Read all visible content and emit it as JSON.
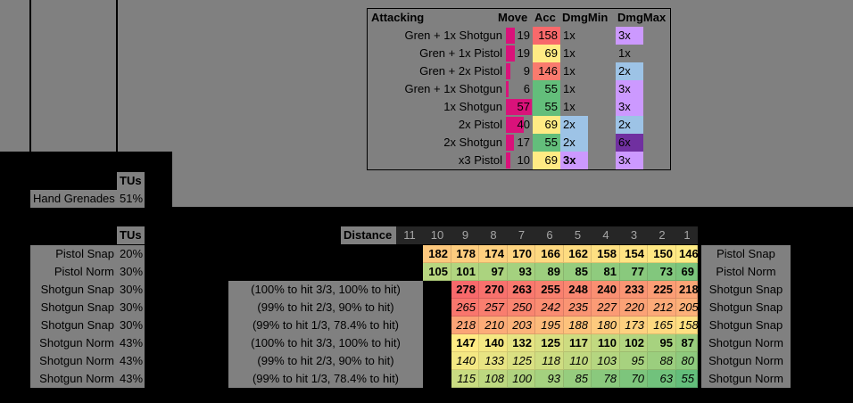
{
  "attack_table": {
    "headers": [
      "Attacking",
      "Move",
      "Acc",
      "DmgMin",
      "DmgMax"
    ],
    "rows": [
      {
        "name": "Gren + 1x Shotgun",
        "move": 19,
        "acc": 158,
        "dmg_min": "1x",
        "dmg_max": "3x",
        "dmg_min_fill": null,
        "dmg_max_fill": "#cc99ff"
      },
      {
        "name": "Gren + 1x Pistol",
        "move": 19,
        "acc": 69,
        "dmg_min": "1x",
        "dmg_max": "1x",
        "dmg_min_fill": null,
        "dmg_max_fill": null
      },
      {
        "name": "Gren + 2x Pistol",
        "move": 9,
        "acc": 146,
        "dmg_min": "1x",
        "dmg_max": "2x",
        "dmg_min_fill": null,
        "dmg_max_fill": "#9dc3e6"
      },
      {
        "name": "Gren + 1x Shotgun",
        "move": 6,
        "acc": 55,
        "dmg_min": "1x",
        "dmg_max": "3x",
        "dmg_min_fill": null,
        "dmg_max_fill": "#cc99ff"
      },
      {
        "name": "1x Shotgun",
        "move": 57,
        "acc": 55,
        "dmg_min": "1x",
        "dmg_max": "3x",
        "dmg_min_fill": null,
        "dmg_max_fill": "#cc99ff"
      },
      {
        "name": "2x Pistol",
        "move": 40,
        "acc": 69,
        "dmg_min": "2x",
        "dmg_max": "2x",
        "dmg_min_fill": "#9dc3e6",
        "dmg_max_fill": "#9dc3e6"
      },
      {
        "name": "2x Shotgun",
        "move": 17,
        "acc": 55,
        "dmg_min": "2x",
        "dmg_max": "6x",
        "dmg_min_fill": "#9dc3e6",
        "dmg_max_fill": "#7030a0"
      },
      {
        "name": "x3 Pistol",
        "move": 10,
        "acc": 69,
        "dmg_min": "3x",
        "dmg_max": "3x",
        "dmg_min_fill": "#cc99ff",
        "dmg_max_fill": "#cc99ff"
      }
    ]
  },
  "grenade_table": {
    "header": "TUs",
    "rows": [
      {
        "label": "Hand Grenades",
        "tu": "51%"
      }
    ]
  },
  "distance_table": {
    "tu_header": "TUs",
    "distance_label": "Distance",
    "distances": [
      11,
      10,
      9,
      8,
      7,
      6,
      5,
      4,
      3,
      2,
      1
    ],
    "rows": [
      {
        "name": "Pistol Snap",
        "tu": "20%",
        "note": null,
        "values": [
          182,
          178,
          174,
          170,
          166,
          162,
          158,
          154,
          150,
          146
        ]
      },
      {
        "name": "Pistol Norm",
        "tu": "30%",
        "note": null,
        "values": [
          105,
          101,
          97,
          93,
          89,
          85,
          81,
          77,
          73,
          69
        ]
      },
      {
        "name": "Shotgun Snap",
        "tu": "30%",
        "note": "(100% to hit 3/3, 100% to hit)",
        "values": [
          278,
          270,
          263,
          255,
          248,
          240,
          233,
          225,
          218
        ]
      },
      {
        "name": "Shotgun Snap",
        "tu": "30%",
        "note": "(99% to hit 2/3, 90% to hit)",
        "values": [
          265,
          257,
          250,
          242,
          235,
          227,
          220,
          212,
          205
        ]
      },
      {
        "name": "Shotgun Snap",
        "tu": "30%",
        "note": "(99% to hit 1/3, 78.4% to hit)",
        "values": [
          218,
          210,
          203,
          195,
          188,
          180,
          173,
          165,
          158
        ]
      },
      {
        "name": "Shotgun Norm",
        "tu": "43%",
        "note": "(100% to hit 3/3, 100% to hit)",
        "values": [
          147,
          140,
          132,
          125,
          117,
          110,
          102,
          95,
          87
        ]
      },
      {
        "name": "Shotgun Norm",
        "tu": "43%",
        "note": "(99% to hit 2/3, 90% to hit)",
        "values": [
          140,
          133,
          125,
          118,
          110,
          103,
          95,
          88,
          80
        ]
      },
      {
        "name": "Shotgun Norm",
        "tu": "43%",
        "note": "(99% to hit 1/3, 78.4% to hit)",
        "values": [
          115,
          108,
          100,
          93,
          85,
          78,
          70,
          63,
          55
        ]
      }
    ]
  }
}
